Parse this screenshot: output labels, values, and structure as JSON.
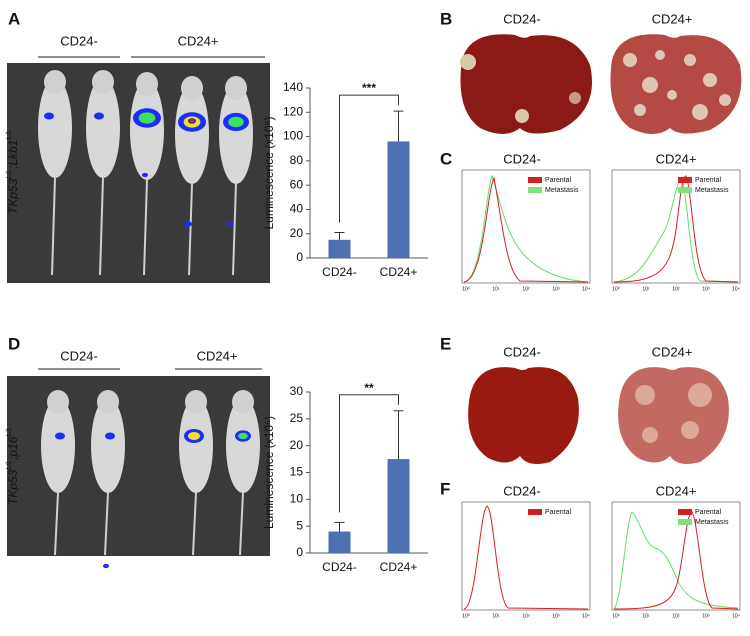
{
  "panel_labels": [
    "A",
    "B",
    "C",
    "D",
    "E",
    "F"
  ],
  "panel_a": {
    "groups": [
      "CD24-",
      "CD24+"
    ],
    "genotype": [
      "TKp53",
      "L/L",
      ";Lkb1",
      "L/L"
    ]
  },
  "panel_d": {
    "groups": [
      "CD24-",
      "CD24+"
    ],
    "genotype": [
      "TKp53",
      "L/L",
      ";p16",
      "L/L"
    ]
  },
  "panel_b": {
    "columns": [
      "CD24-",
      "CD24+"
    ]
  },
  "panel_e": {
    "columns": [
      "CD24-",
      "CD24+"
    ]
  },
  "panel_c": {
    "columns": [
      "CD24-",
      "CD24+"
    ],
    "legend_left": [
      "Parental",
      "Metastasis"
    ],
    "legend_right": [
      "Parental",
      "Metastasis"
    ],
    "xticks": [
      "10⁰",
      "10¹",
      "10²",
      "10³",
      "10⁴"
    ]
  },
  "panel_f": {
    "columns": [
      "CD24-",
      "CD24+"
    ],
    "legend_left": [
      "Parental"
    ],
    "legend_right": [
      "Parental",
      "Metastasis"
    ],
    "xticks": [
      "10⁰",
      "10¹",
      "10²",
      "10³",
      "10⁴"
    ]
  },
  "chart_data": [
    {
      "type": "bar",
      "y_label": "Luminescence (x10⁶)",
      "categories": [
        "CD24-",
        "CD24+"
      ],
      "values": [
        15,
        96
      ],
      "errors": [
        6,
        25
      ],
      "color": "#4f6fb3",
      "ylim": [
        0,
        140
      ],
      "yticks": [
        0,
        20,
        40,
        60,
        80,
        100,
        120,
        140
      ],
      "significance": "***"
    },
    {
      "type": "bar",
      "y_label": "Luminescence (x10⁶)",
      "categories": [
        "CD24-",
        "CD24+"
      ],
      "values": [
        4,
        17.5
      ],
      "errors": [
        1.7,
        9
      ],
      "color": "#4f6fb3",
      "ylim": [
        0,
        30
      ],
      "yticks": [
        0,
        5,
        10,
        15,
        20,
        25,
        30
      ],
      "significance": "**"
    }
  ]
}
